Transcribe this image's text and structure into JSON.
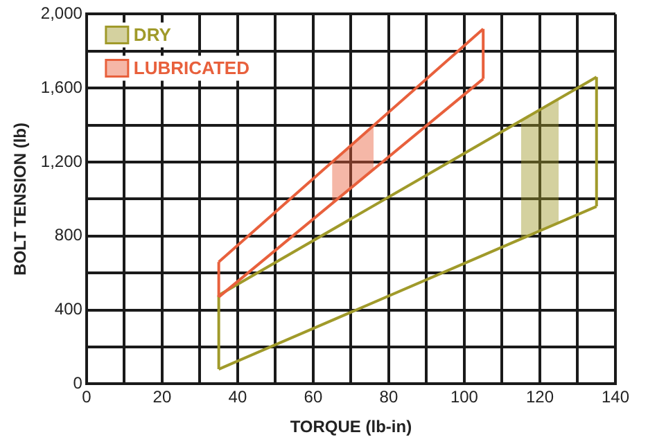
{
  "chart_data": {
    "type": "line",
    "xlabel": "TORQUE (lb-in)",
    "ylabel": "BOLT TENSION (lb)",
    "xlim": [
      0,
      140
    ],
    "ylim": [
      0,
      2000
    ],
    "xticks": [
      0,
      {
        "value": 10,
        "label": null
      },
      20,
      {
        "value": 30,
        "label": null
      },
      40,
      {
        "value": 50,
        "label": null
      },
      60,
      {
        "value": 70,
        "label": null
      },
      80,
      {
        "value": 90,
        "label": null
      },
      100,
      {
        "value": 110,
        "label": null
      },
      120,
      {
        "value": 130,
        "label": null
      },
      140
    ],
    "yticks": [
      0,
      {
        "value": 200,
        "label": null
      },
      400,
      {
        "value": 600,
        "label": null
      },
      800,
      {
        "value": 1000,
        "label": null
      },
      {
        "value": 1200,
        "label": "1,200"
      },
      {
        "value": 1400,
        "label": null
      },
      {
        "value": 1600,
        "label": "1,600"
      },
      {
        "value": 1800,
        "label": null
      },
      {
        "value": 2000,
        "label": "2,000"
      }
    ],
    "series": [
      {
        "type": "line",
        "color": "#e8603c",
        "x": [
          35,
          105
        ],
        "values": [
          660,
          1920
        ]
      },
      {
        "type": "line",
        "color": "#e8603c",
        "x": [
          35,
          105
        ],
        "values": [
          470,
          1650
        ]
      },
      {
        "type": "line",
        "color": "#e8603c",
        "x": [
          35,
          35
        ],
        "values": [
          470,
          660
        ]
      },
      {
        "type": "line",
        "color": "#e8603c",
        "x": [
          105,
          105
        ],
        "values": [
          1650,
          1920
        ]
      },
      {
        "type": "line",
        "color": "#a09a2a",
        "x": [
          35,
          135
        ],
        "values": [
          480,
          1660
        ]
      },
      {
        "type": "line",
        "color": "#a09a2a",
        "x": [
          35,
          135
        ],
        "values": [
          80,
          960
        ]
      },
      {
        "type": "line",
        "color": "#a09a2a",
        "x": [
          35,
          35
        ],
        "values": [
          80,
          480
        ]
      },
      {
        "type": "line",
        "color": "#a09a2a",
        "x": [
          135,
          135
        ],
        "values": [
          960,
          1660
        ]
      },
      {
        "type": "area",
        "name": "DRY",
        "color": "#a09a2a",
        "x": [
          115,
          125
        ],
        "values": [
          null,
          null
        ],
        "lower": [
          784,
          872
        ],
        "upper": [
          1424,
          1542
        ]
      },
      {
        "type": "area",
        "name": "LUBRICATED",
        "color": "#e8603c",
        "x": [
          65,
          76
        ],
        "values": [
          null,
          null
        ],
        "lower": [
          976,
          1161
        ],
        "upper": [
          1200,
          1398
        ]
      }
    ],
    "grid": true,
    "legend": "top left",
    "marker": "none",
    "line_style": "solid"
  }
}
